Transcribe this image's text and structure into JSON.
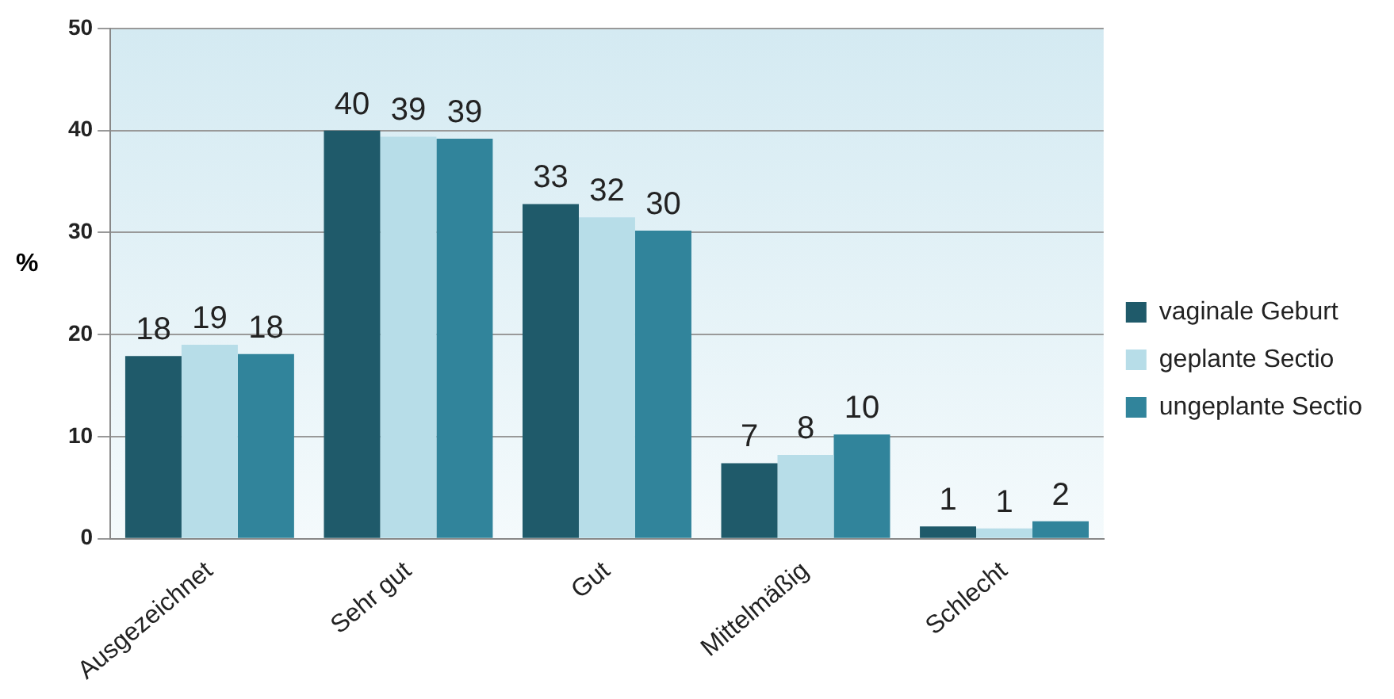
{
  "chart_data": {
    "type": "bar",
    "ylabel": "%",
    "categories": [
      "Ausgezeichnet",
      "Sehr gut",
      "Gut",
      "Mittelmäßig",
      "Schlecht"
    ],
    "series": [
      {
        "name": "vaginale Geburt",
        "color": "#1f5a6a",
        "values": [
          17.9,
          40.0,
          32.8,
          7.4,
          1.2
        ],
        "value_labels": [
          "18",
          "40",
          "33",
          "7",
          "1"
        ]
      },
      {
        "name": "geplante Sectio",
        "color": "#b7dde8",
        "values": [
          19.0,
          39.4,
          31.5,
          8.2,
          1.0
        ],
        "value_labels": [
          "19",
          "39",
          "32",
          "8",
          "1"
        ]
      },
      {
        "name": "ungeplante Sectio",
        "color": "#31849b",
        "values": [
          18.1,
          39.2,
          30.2,
          10.2,
          1.7
        ],
        "value_labels": [
          "18",
          "39",
          "30",
          "10",
          "2"
        ]
      }
    ],
    "ylim": [
      0,
      50
    ],
    "yticks": [
      0,
      10,
      20,
      30,
      40,
      50
    ],
    "grid": "y",
    "legend": "right"
  }
}
